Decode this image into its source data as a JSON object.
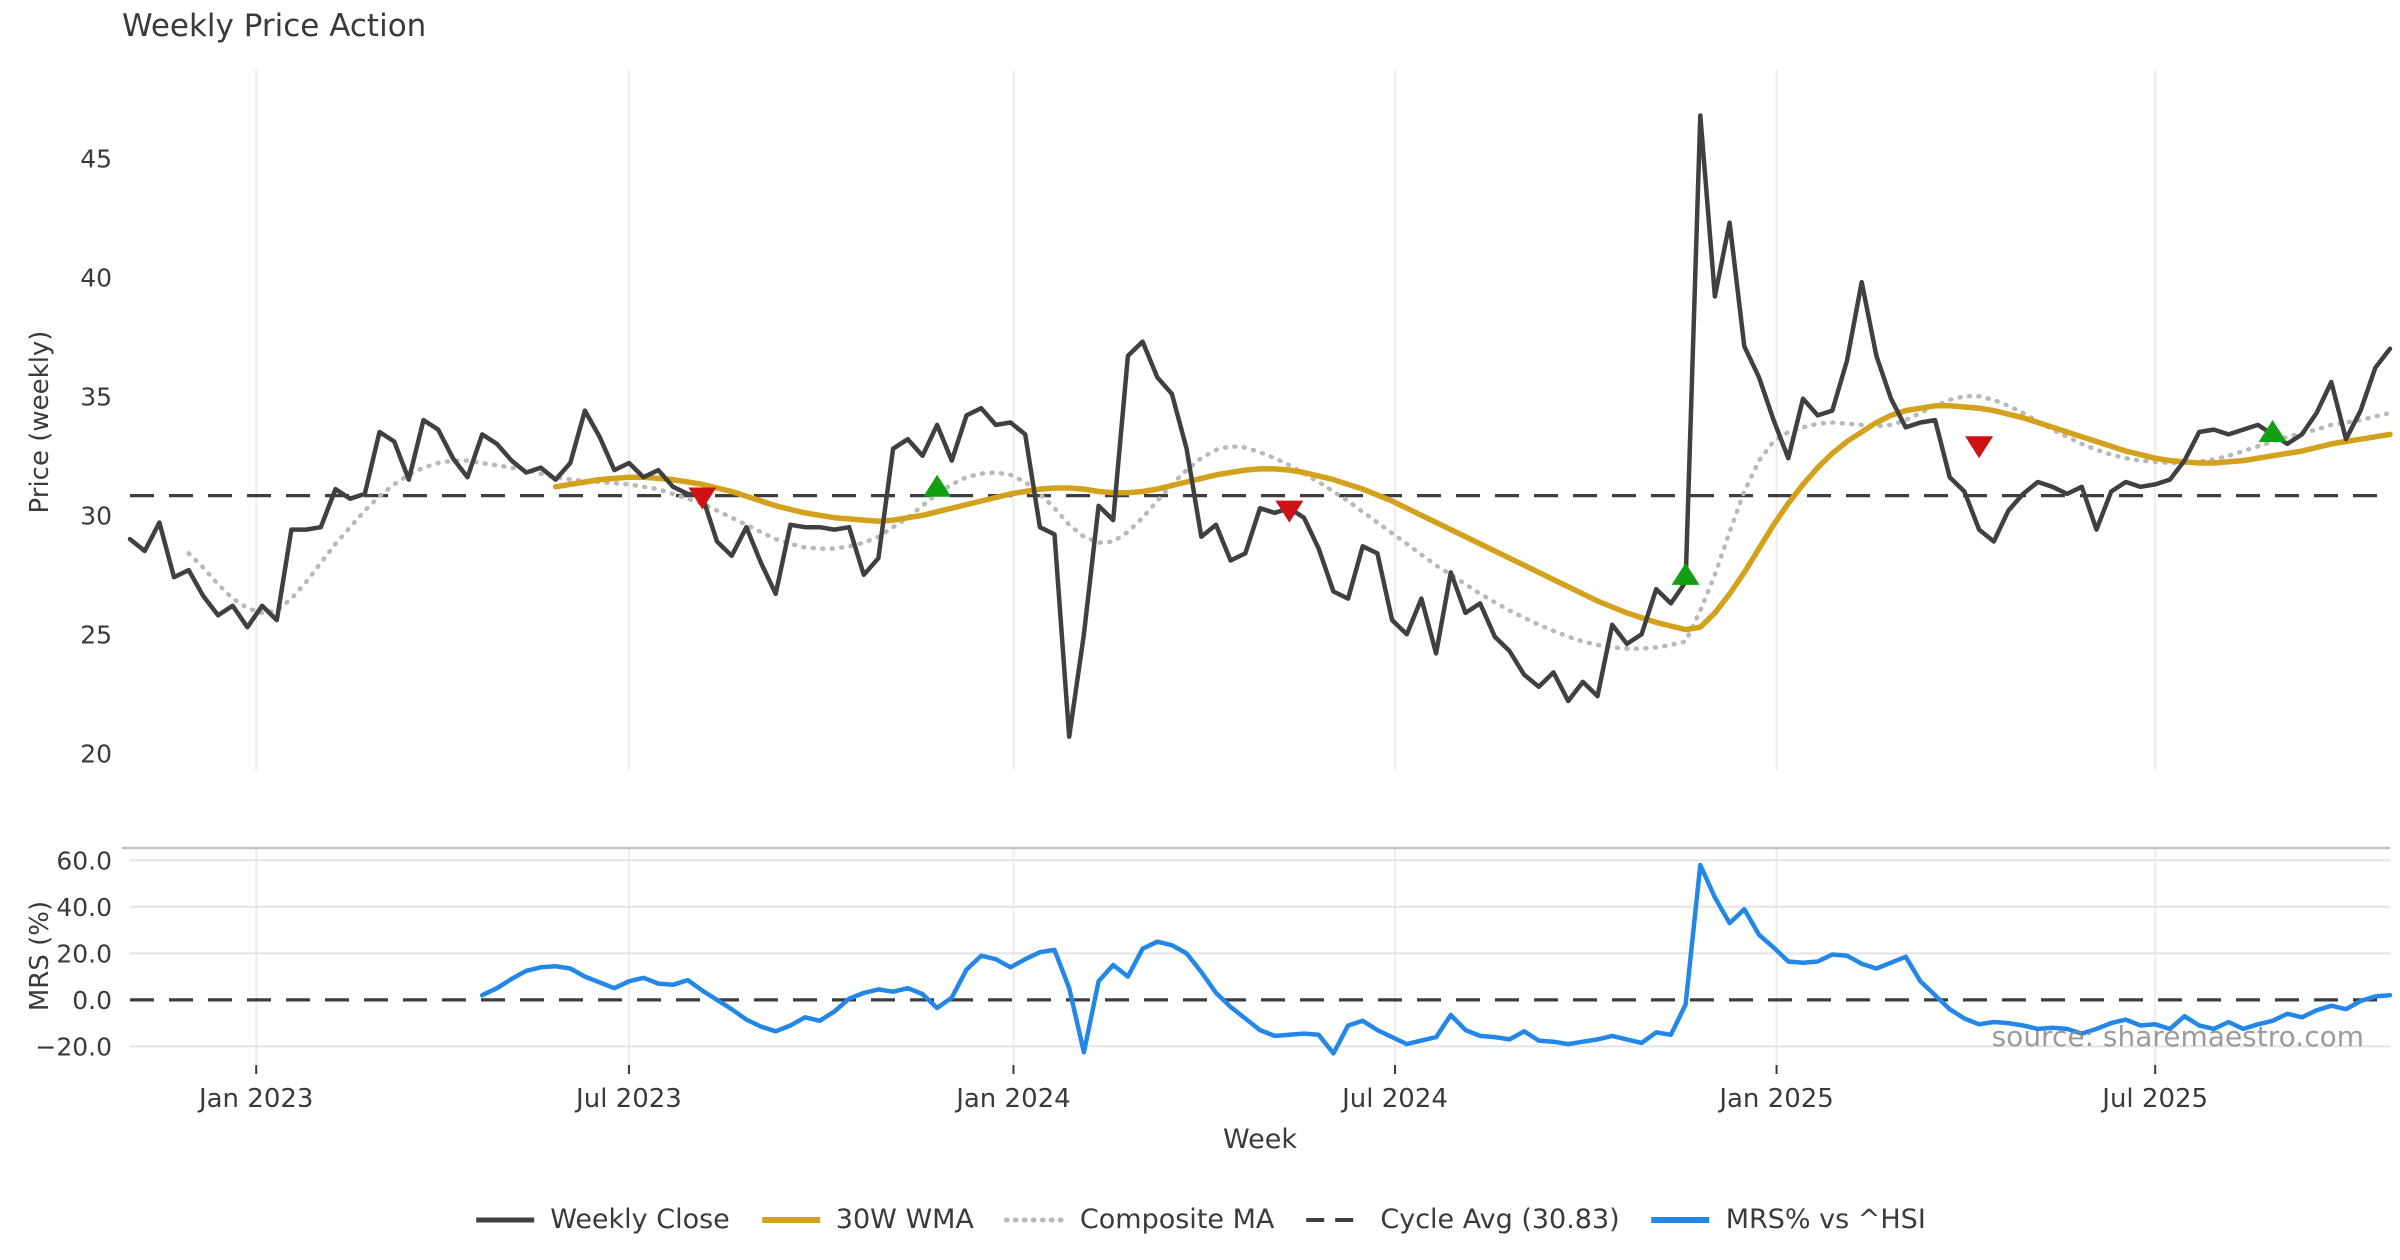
{
  "title": "Weekly Price Action",
  "watermark": "source: sharemaestro.com",
  "axes": {
    "x_label": "Week",
    "price_ylabel": "Price (weekly)",
    "mrs_ylabel": "MRS (%)"
  },
  "colors": {
    "weekly_close": "#404040",
    "wma30": "#d4a11d",
    "composite": "#b9b9b9",
    "cycle_avg": "#3d3d3d",
    "mrs": "#2287e6",
    "sell_marker": "#cc1212",
    "buy_marker": "#12a012",
    "grid": "#ececec",
    "text": "#3a3a3a"
  },
  "legend": [
    {
      "label": "Weekly Close",
      "style": "solid",
      "color": "#404040",
      "width": 5
    },
    {
      "label": "30W WMA",
      "style": "solid",
      "color": "#d4a11d",
      "width": 6
    },
    {
      "label": "Composite MA",
      "style": "dotted",
      "color": "#b9b9b9",
      "width": 5
    },
    {
      "label": "Cycle Avg (30.83)",
      "style": "dashed",
      "color": "#3d3d3d",
      "width": 4
    },
    {
      "label": "MRS% vs ^HSI",
      "style": "solid",
      "color": "#2287e6",
      "width": 6
    }
  ],
  "chart_data": {
    "type": "line",
    "title": "Weekly Price Action",
    "xlabel": "Week",
    "x_axis": {
      "unit": "weeks",
      "start_week_date": "Nov 2022",
      "total_weeks": 155,
      "ticks": [
        {
          "week": 8.6,
          "label": "Jan 2023"
        },
        {
          "week": 34.0,
          "label": "Jul 2023"
        },
        {
          "week": 60.2,
          "label": "Jan 2024"
        },
        {
          "week": 86.2,
          "label": "Jul 2024"
        },
        {
          "week": 112.2,
          "label": "Jan 2025"
        },
        {
          "week": 138.0,
          "label": "Jul 2025"
        }
      ]
    },
    "price_panel": {
      "ylabel": "Price (weekly)",
      "ylim": [
        19.3,
        48.5
      ],
      "yticks": [
        {
          "v": 20,
          "label": "20"
        },
        {
          "v": 25,
          "label": "25"
        },
        {
          "v": 30,
          "label": "30"
        },
        {
          "v": 35,
          "label": "35"
        },
        {
          "v": 40,
          "label": "40"
        },
        {
          "v": 45,
          "label": "45"
        }
      ],
      "cycle_avg": 30.83,
      "series": [
        {
          "id": "composite_ma",
          "name": "Composite MA",
          "style": "dotted",
          "color": "#b9b9b9",
          "width": 4.5,
          "start_week": 4,
          "values": [
            28.4,
            27.8,
            27.1,
            26.5,
            26.1,
            25.9,
            26.0,
            26.5,
            27.2,
            28.0,
            28.8,
            29.5,
            30.2,
            30.8,
            31.3,
            31.7,
            32.0,
            32.2,
            32.3,
            32.3,
            32.2,
            32.1,
            32.0,
            31.9,
            31.75,
            31.6,
            31.5,
            31.45,
            31.4,
            31.35,
            31.3,
            31.2,
            31.1,
            30.9,
            30.7,
            30.5,
            30.2,
            29.9,
            29.6,
            29.3,
            29.0,
            28.8,
            28.65,
            28.6,
            28.6,
            28.7,
            28.85,
            29.1,
            29.5,
            29.9,
            30.4,
            30.9,
            31.3,
            31.6,
            31.75,
            31.8,
            31.7,
            31.4,
            30.9,
            30.3,
            29.6,
            29.1,
            28.85,
            28.9,
            29.3,
            29.9,
            30.6,
            31.3,
            31.9,
            32.4,
            32.75,
            32.9,
            32.85,
            32.65,
            32.4,
            32.1,
            31.75,
            31.4,
            31.0,
            30.6,
            30.15,
            29.7,
            29.25,
            28.8,
            28.35,
            27.9,
            27.5,
            27.1,
            26.7,
            26.35,
            26.0,
            25.7,
            25.4,
            25.15,
            24.9,
            24.7,
            24.55,
            24.45,
            24.4,
            24.4,
            24.45,
            24.55,
            24.7,
            26.0,
            27.5,
            29.3,
            31.0,
            32.3,
            33.1,
            33.5,
            33.7,
            33.85,
            33.9,
            33.85,
            33.8,
            33.75,
            33.8,
            34.0,
            34.3,
            34.6,
            34.85,
            35.0,
            35.0,
            34.85,
            34.6,
            34.3,
            33.95,
            33.6,
            33.3,
            33.0,
            32.75,
            32.55,
            32.4,
            32.3,
            32.25,
            32.2,
            32.2,
            32.25,
            32.35,
            32.5,
            32.7,
            32.9,
            33.1,
            33.3,
            33.45,
            33.6,
            33.8,
            33.9,
            34.0,
            34.15,
            34.3
          ]
        },
        {
          "id": "wma30",
          "name": "30W WMA",
          "style": "solid",
          "color": "#d4a11d",
          "width": 5.5,
          "start_week": 29,
          "values": [
            31.2,
            31.3,
            31.4,
            31.5,
            31.55,
            31.6,
            31.6,
            31.55,
            31.5,
            31.4,
            31.3,
            31.15,
            31.0,
            30.8,
            30.6,
            30.4,
            30.25,
            30.1,
            30.0,
            29.9,
            29.85,
            29.8,
            29.75,
            29.8,
            29.9,
            30.0,
            30.15,
            30.3,
            30.45,
            30.6,
            30.75,
            30.9,
            31.0,
            31.1,
            31.15,
            31.15,
            31.1,
            31.0,
            30.95,
            30.95,
            31.0,
            31.1,
            31.25,
            31.4,
            31.55,
            31.7,
            31.8,
            31.9,
            31.95,
            31.95,
            31.9,
            31.8,
            31.65,
            31.5,
            31.3,
            31.1,
            30.85,
            30.6,
            30.3,
            30.0,
            29.7,
            29.4,
            29.1,
            28.8,
            28.5,
            28.2,
            27.9,
            27.6,
            27.3,
            27.0,
            26.7,
            26.4,
            26.15,
            25.9,
            25.7,
            25.5,
            25.35,
            25.2,
            25.3,
            25.9,
            26.7,
            27.6,
            28.6,
            29.6,
            30.5,
            31.3,
            32.0,
            32.6,
            33.1,
            33.5,
            33.9,
            34.2,
            34.4,
            34.5,
            34.6,
            34.6,
            34.55,
            34.5,
            34.4,
            34.25,
            34.1,
            33.9,
            33.7,
            33.5,
            33.3,
            33.1,
            32.9,
            32.7,
            32.55,
            32.4,
            32.3,
            32.25,
            32.2,
            32.2,
            32.25,
            32.3,
            32.4,
            32.5,
            32.6,
            32.7,
            32.85,
            33.0,
            33.1,
            33.2,
            33.3,
            33.4
          ]
        },
        {
          "id": "weekly_close",
          "name": "Weekly Close",
          "style": "solid",
          "color": "#404040",
          "width": 4.5,
          "start_week": 0,
          "values": [
            29.0,
            28.5,
            29.7,
            27.4,
            27.7,
            26.6,
            25.8,
            26.2,
            25.3,
            26.2,
            25.6,
            29.4,
            29.4,
            29.5,
            31.1,
            30.7,
            30.9,
            33.5,
            33.1,
            31.5,
            34.0,
            33.6,
            32.4,
            31.6,
            33.4,
            33.0,
            32.3,
            31.8,
            32.0,
            31.5,
            32.2,
            34.4,
            33.3,
            31.9,
            32.2,
            31.6,
            31.9,
            31.2,
            30.9,
            30.8,
            28.9,
            28.3,
            29.5,
            28.0,
            26.7,
            29.6,
            29.5,
            29.5,
            29.4,
            29.5,
            27.5,
            28.2,
            32.8,
            33.2,
            32.5,
            33.8,
            32.3,
            34.2,
            34.5,
            33.8,
            33.9,
            33.4,
            29.5,
            29.2,
            20.7,
            25.0,
            30.4,
            29.8,
            36.7,
            37.3,
            35.8,
            35.1,
            32.8,
            29.1,
            29.6,
            28.1,
            28.4,
            30.3,
            30.1,
            30.3,
            29.9,
            28.6,
            26.8,
            26.5,
            28.7,
            28.4,
            25.6,
            25.0,
            26.5,
            24.2,
            27.6,
            25.9,
            26.3,
            24.9,
            24.3,
            23.3,
            22.8,
            23.4,
            22.2,
            23.0,
            22.4,
            25.4,
            24.6,
            25.0,
            26.9,
            26.3,
            27.2,
            46.8,
            39.2,
            42.3,
            37.1,
            35.8,
            34.0,
            32.4,
            34.9,
            34.2,
            34.4,
            36.5,
            39.8,
            36.7,
            34.9,
            33.7,
            33.9,
            34.0,
            31.6,
            31.0,
            29.4,
            28.9,
            30.2,
            30.9,
            31.4,
            31.2,
            30.9,
            31.2,
            29.4,
            31.0,
            31.4,
            31.2,
            31.3,
            31.5,
            32.3,
            33.5,
            33.6,
            33.4,
            33.6,
            33.8,
            33.4,
            33.0,
            33.4,
            34.3,
            35.6,
            33.2,
            34.4,
            36.2,
            37.0
          ]
        }
      ],
      "buy_markers": [
        {
          "week": 55,
          "value": 31.2
        },
        {
          "week": 106,
          "value": 27.5
        },
        {
          "week": 146,
          "value": 33.5
        }
      ],
      "sell_markers": [
        {
          "week": 39,
          "value": 30.75
        },
        {
          "week": 79,
          "value": 30.2
        },
        {
          "week": 126,
          "value": 32.9
        }
      ]
    },
    "mrs_panel": {
      "ylabel": "MRS (%)",
      "ylim": [
        -28.0,
        65.3
      ],
      "yticks": [
        {
          "v": 60,
          "label": "60.0"
        },
        {
          "v": 40,
          "label": "40.0"
        },
        {
          "v": 20,
          "label": "20.0"
        },
        {
          "v": 0,
          "label": "0.0"
        },
        {
          "v": -20,
          "label": "−20.0"
        }
      ],
      "zero_line": 0,
      "series": [
        {
          "id": "mrs",
          "name": "MRS% vs ^HSI",
          "style": "solid",
          "color": "#2287e6",
          "width": 4.5,
          "start_week": 24,
          "values": [
            2,
            5,
            9,
            12.5,
            14,
            14.5,
            13.5,
            10,
            7.5,
            5,
            8,
            9.5,
            7,
            6.5,
            8.5,
            4,
            0,
            -4,
            -8.5,
            -11.5,
            -13.5,
            -11,
            -7.5,
            -9,
            -5,
            0.5,
            3,
            4.5,
            3.5,
            5,
            2.5,
            -3.5,
            1,
            13,
            19,
            17.5,
            14,
            17.5,
            20.5,
            21.5,
            5,
            -22.5,
            8,
            15,
            10,
            22,
            25,
            23.5,
            20,
            12,
            3,
            -3,
            -8,
            -13,
            -15.5,
            -15,
            -14.5,
            -15,
            -23,
            -11,
            -9,
            -13,
            -16,
            -19,
            -17.5,
            -16,
            -6.5,
            -13,
            -15.5,
            -16,
            -17,
            -13.5,
            -17.5,
            -18,
            -19,
            -18,
            -17,
            -15.5,
            -17,
            -18.5,
            -14,
            -15,
            -2,
            58,
            44,
            33,
            39,
            28,
            22.5,
            16.5,
            16,
            16.5,
            19.5,
            19,
            15.5,
            13.5,
            16,
            18.5,
            8,
            2,
            -4,
            -8,
            -10.5,
            -9.5,
            -10,
            -11,
            -12.5,
            -12,
            -12.5,
            -14.5,
            -12.5,
            -10,
            -8.5,
            -11,
            -10.5,
            -12.5,
            -7,
            -11,
            -12.5,
            -9.5,
            -12.5,
            -10.5,
            -9,
            -6,
            -7.5,
            -4.5,
            -2.5,
            -4,
            -0.5,
            1.5,
            2
          ]
        }
      ]
    }
  }
}
